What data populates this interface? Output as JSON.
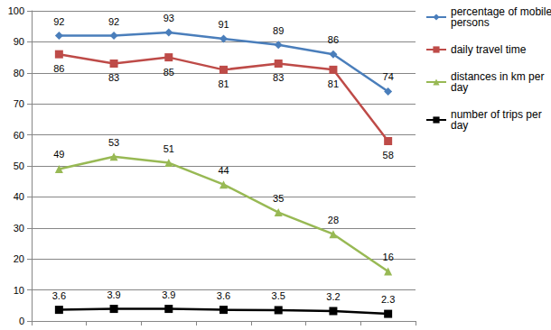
{
  "chart_data": {
    "type": "line",
    "categories": [
      null,
      null,
      null,
      null,
      null,
      null,
      null
    ],
    "series": [
      {
        "name": "percentage of mobile persons",
        "color": "#4a7ebb",
        "marker": "diamond",
        "values": [
          92,
          92,
          93,
          91,
          89,
          86,
          74
        ]
      },
      {
        "name": "daily travel time",
        "color": "#be4b48",
        "marker": "square",
        "values": [
          86,
          83,
          85,
          81,
          83,
          81,
          58
        ]
      },
      {
        "name": "distances in km per day",
        "color": "#98b954",
        "marker": "triangle",
        "values": [
          49,
          53,
          51,
          44,
          35,
          28,
          16
        ]
      },
      {
        "name": "number of trips per day",
        "color": "#000000",
        "marker": "square",
        "values": [
          3.6,
          3.9,
          3.9,
          3.6,
          3.5,
          3.2,
          2.3
        ]
      }
    ],
    "ylim": [
      0,
      100
    ],
    "yticks": [
      0,
      10,
      20,
      30,
      40,
      50,
      60,
      70,
      80,
      90,
      100
    ],
    "grid": true,
    "legend": "right",
    "data_labels": true
  }
}
